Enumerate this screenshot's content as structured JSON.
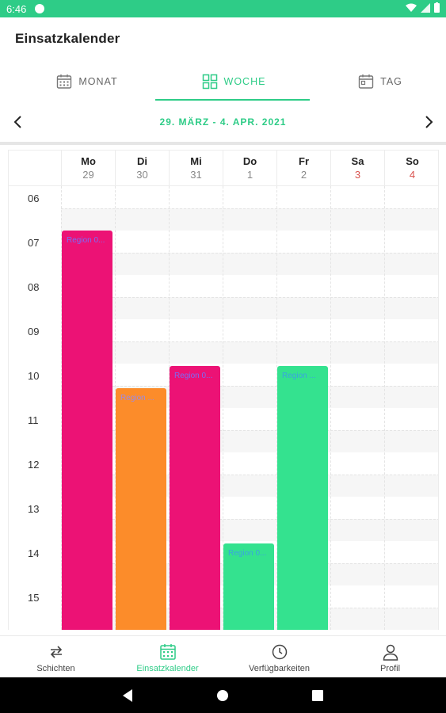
{
  "status_bar": {
    "time": "6:46"
  },
  "app": {
    "title": "Einsatzkalender"
  },
  "view_tabs": [
    {
      "label": "MONAT",
      "icon": "calendar-month-icon",
      "active": false
    },
    {
      "label": "WOCHE",
      "icon": "grid-week-icon",
      "active": true
    },
    {
      "label": "TAG",
      "icon": "calendar-day-icon",
      "active": false
    }
  ],
  "week_nav": {
    "range": "29. MÄRZ - 4. APR. 2021"
  },
  "days": [
    {
      "name": "Mo",
      "date": "29",
      "weekend": false
    },
    {
      "name": "Di",
      "date": "30",
      "weekend": false
    },
    {
      "name": "Mi",
      "date": "31",
      "weekend": false
    },
    {
      "name": "Do",
      "date": "1",
      "weekend": false
    },
    {
      "name": "Fr",
      "date": "2",
      "weekend": false
    },
    {
      "name": "Sa",
      "date": "3",
      "weekend": true
    },
    {
      "name": "So",
      "date": "4",
      "weekend": true
    }
  ],
  "hours": [
    "06",
    "07",
    "08",
    "09",
    "10",
    "11",
    "12",
    "13",
    "14",
    "15"
  ],
  "events": [
    {
      "day": 0,
      "start_hour": 7.0,
      "end_hour": 16.7,
      "label": "Region 0...",
      "color": "#ec1275",
      "label_color": "#7b6cf6"
    },
    {
      "day": 1,
      "start_hour": 10.55,
      "end_hour": 16.7,
      "label": "Region ...",
      "color": "#fc8c2a",
      "label_color": "#9a8ae8"
    },
    {
      "day": 2,
      "start_hour": 10.05,
      "end_hour": 16.7,
      "label": "Region 0...",
      "color": "#ec1275",
      "label_color": "#7b6cf6"
    },
    {
      "day": 3,
      "start_hour": 14.05,
      "end_hour": 16.7,
      "label": "Region 0...",
      "color": "#34e28f",
      "label_color": "#3aa3e0"
    },
    {
      "day": 4,
      "start_hour": 10.05,
      "end_hour": 16.7,
      "label": "Region ...",
      "color": "#34e28f",
      "label_color": "#3aa3e0"
    }
  ],
  "bottom_nav": [
    {
      "label": "Schichten",
      "icon": "swap-arrows-icon",
      "active": false
    },
    {
      "label": "Einsatzkalender",
      "icon": "calendar-icon",
      "active": true
    },
    {
      "label": "Verfügbarkeiten",
      "icon": "clock-icon",
      "active": false
    },
    {
      "label": "Profil",
      "icon": "person-icon",
      "active": false
    }
  ],
  "colors": {
    "accent": "#2ecc87",
    "weekend": "#d9534f"
  }
}
